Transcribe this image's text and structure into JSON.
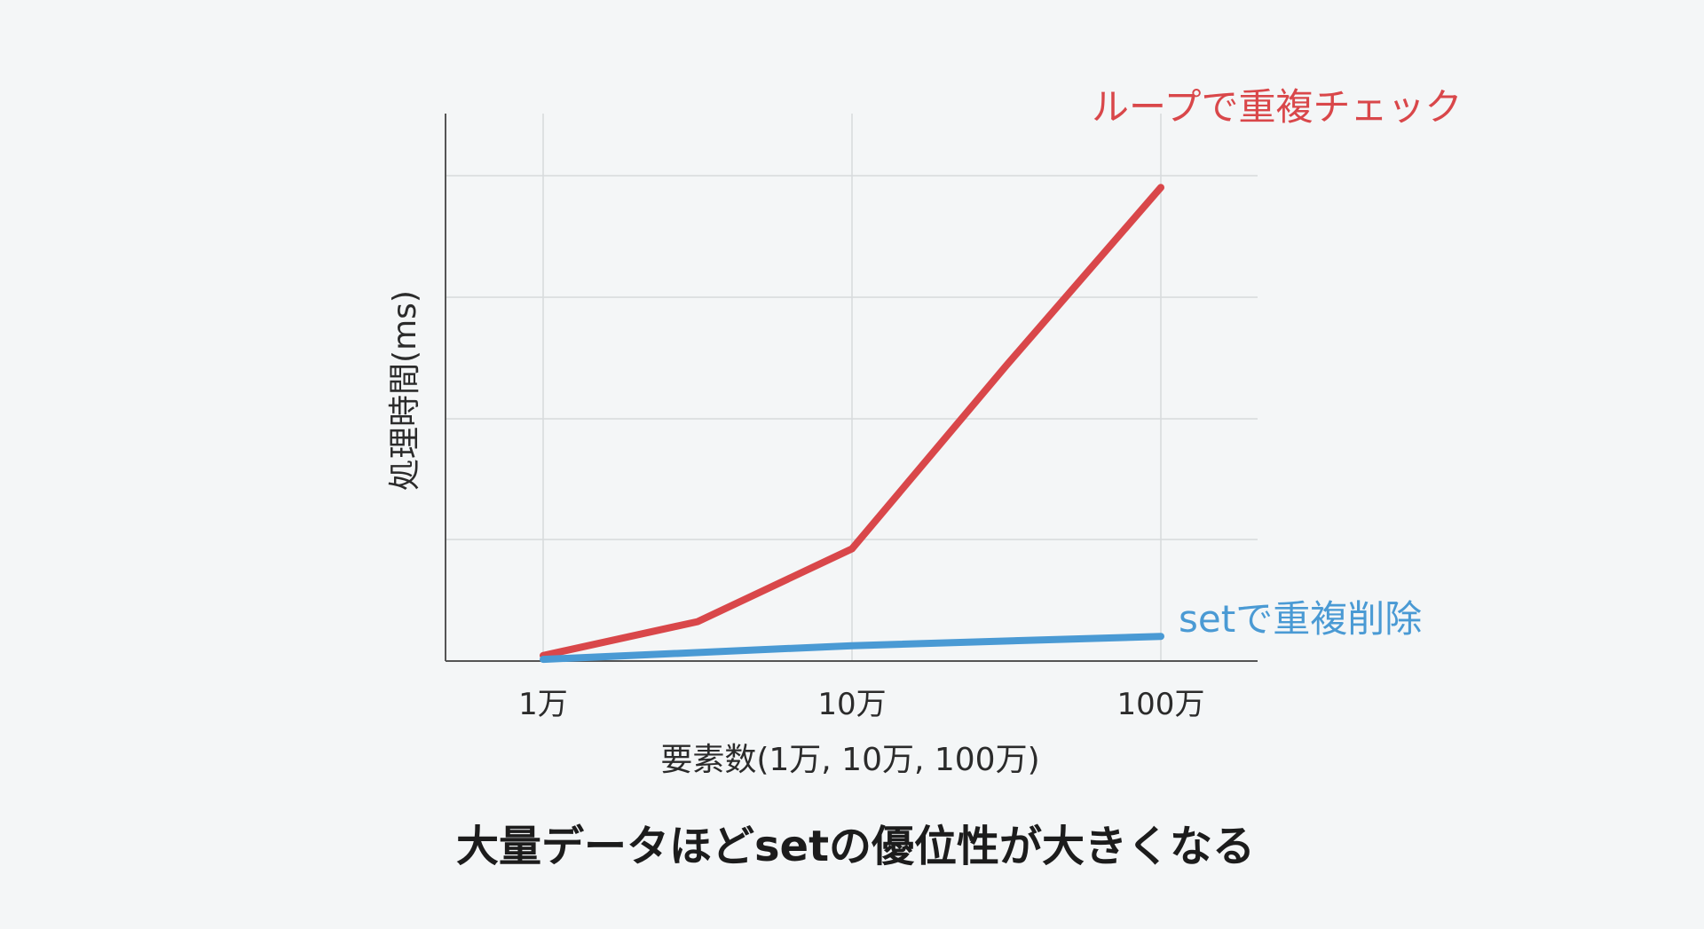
{
  "chart_data": {
    "type": "line",
    "xlabel": "要素数(1万, 10万, 100万)",
    "ylabel": "処理時間(ms)",
    "x_ticks": [
      "1万",
      "10万",
      "100万"
    ],
    "x_scale": "log",
    "grid": true,
    "y_tick_labels": false,
    "series": [
      {
        "name": "ループで重複チェック",
        "color": "#d9474a",
        "x": [
          10000,
          31623,
          100000,
          316228,
          1000000
        ],
        "values": [
          1.0,
          7.2,
          20.5,
          54.0,
          86.5
        ]
      },
      {
        "name": "setで重複削除",
        "color": "#4a9ad4",
        "x": [
          10000,
          100000,
          1000000
        ],
        "values": [
          0.3,
          2.8,
          4.5
        ]
      }
    ],
    "ylim": [
      0,
      100
    ],
    "annotation": "大量データほどsetの優位性が大きくなる"
  }
}
